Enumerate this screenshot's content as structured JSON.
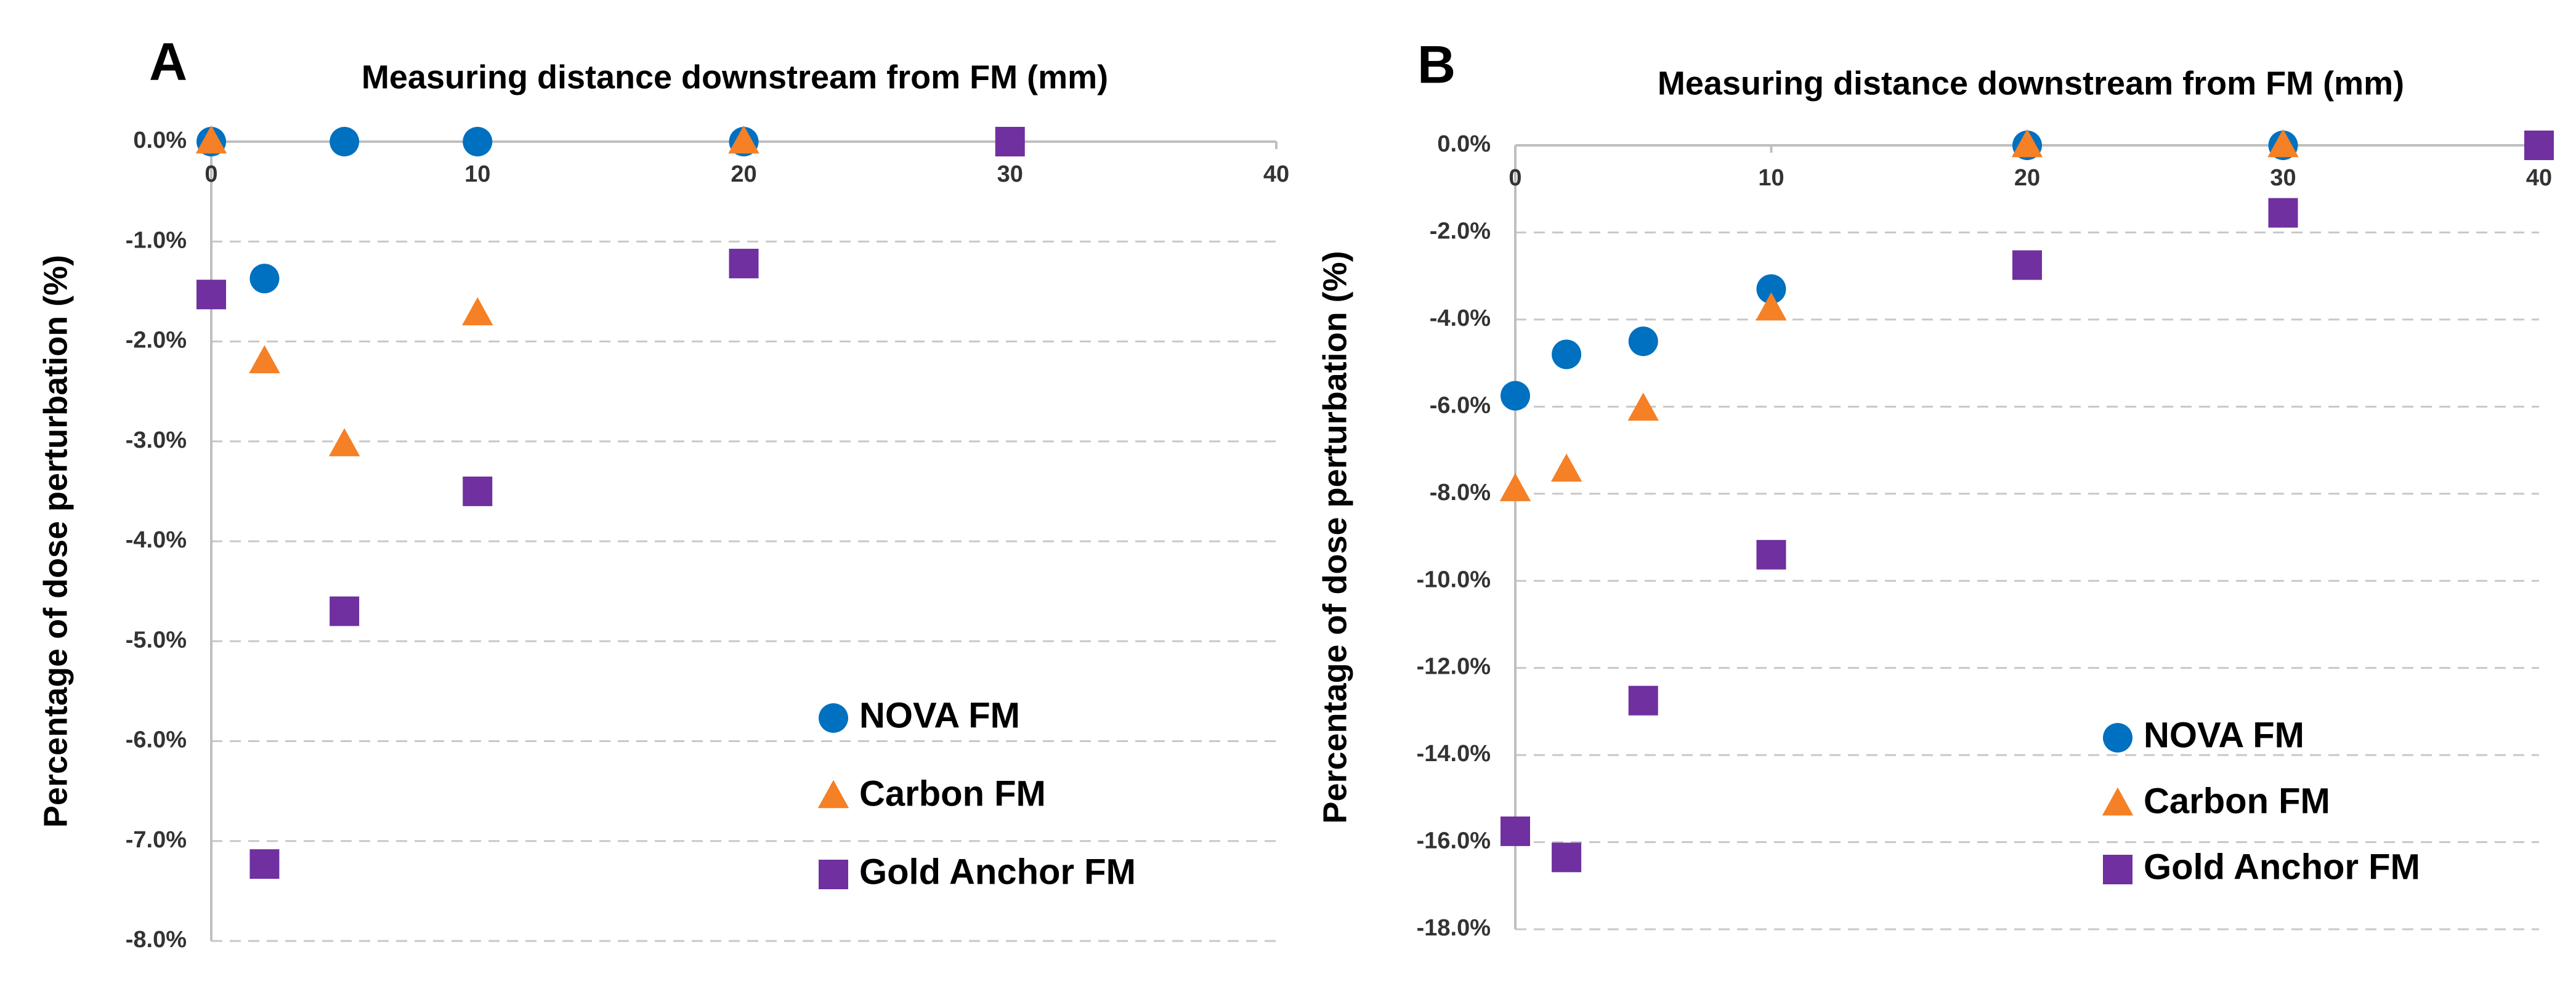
{
  "chart_data": [
    {
      "type": "scatter",
      "panel_label": "A",
      "xlabel": "Measuring distance downstream from FM (mm)",
      "ylabel": "Percentage of dose perturbation (%)",
      "xlim": [
        0,
        40
      ],
      "xticks": [
        0,
        10,
        20,
        30,
        40
      ],
      "ylim": [
        -8,
        0
      ],
      "yticks": [
        {
          "value": 0,
          "label": "0.0%"
        },
        {
          "value": -1,
          "label": "-1.0%"
        },
        {
          "value": -2,
          "label": "-2.0%"
        },
        {
          "value": -3,
          "label": "-3.0%"
        },
        {
          "value": -4,
          "label": "-4.0%"
        },
        {
          "value": -5,
          "label": "-5.0%"
        },
        {
          "value": -6,
          "label": "-6.0%"
        },
        {
          "value": -7,
          "label": "-7.0%"
        },
        {
          "value": -8,
          "label": "-8.0%"
        }
      ],
      "grid": true,
      "series": [
        {
          "name": "NOVA FM",
          "color": "#0070C0",
          "marker": "circle",
          "x": [
            0,
            2,
            5,
            10,
            20
          ],
          "values": [
            0,
            -1.37,
            0,
            0,
            0
          ]
        },
        {
          "name": "Carbon FM",
          "color": "#F58025",
          "marker": "triangle",
          "x": [
            0,
            2,
            5,
            10,
            20
          ],
          "values": [
            0,
            -2.2,
            -3.03,
            -1.72,
            0
          ]
        },
        {
          "name": "Gold Anchor FM",
          "color": "#7030A0",
          "marker": "square",
          "x": [
            0,
            2,
            5,
            10,
            20,
            30
          ],
          "values": [
            -1.53,
            -7.23,
            -4.7,
            -3.5,
            -1.22,
            0
          ]
        }
      ]
    },
    {
      "type": "scatter",
      "panel_label": "B",
      "xlabel": "Measuring distance downstream from FM (mm)",
      "ylabel": "Percentage of dose perturbation (%)",
      "xlim": [
        0,
        40
      ],
      "xticks": [
        0,
        10,
        20,
        30,
        40
      ],
      "ylim": [
        -18,
        0
      ],
      "yticks": [
        {
          "value": 0,
          "label": "0.0%"
        },
        {
          "value": -2,
          "label": "-2.0%"
        },
        {
          "value": -4,
          "label": "-4.0%"
        },
        {
          "value": -6,
          "label": "-6.0%"
        },
        {
          "value": -8,
          "label": "-8.0%"
        },
        {
          "value": -10,
          "label": "-10.0%"
        },
        {
          "value": -12,
          "label": "-12.0%"
        },
        {
          "value": -14,
          "label": "-14.0%"
        },
        {
          "value": -16,
          "label": "-16.0%"
        },
        {
          "value": -18,
          "label": "-18.0%"
        }
      ],
      "grid": true,
      "series": [
        {
          "name": "NOVA FM",
          "color": "#0070C0",
          "marker": "circle",
          "x": [
            0,
            2,
            5,
            10,
            20,
            30
          ],
          "values": [
            -5.75,
            -4.8,
            -4.5,
            -3.3,
            0,
            0
          ]
        },
        {
          "name": "Carbon FM",
          "color": "#F58025",
          "marker": "triangle",
          "x": [
            0,
            2,
            5,
            10,
            20,
            30
          ],
          "values": [
            -7.9,
            -7.45,
            -6.05,
            -3.75,
            0,
            0
          ]
        },
        {
          "name": "Gold Anchor FM",
          "color": "#7030A0",
          "marker": "square",
          "x": [
            0,
            2,
            5,
            10,
            20,
            30,
            40
          ],
          "values": [
            -15.75,
            -16.35,
            -12.75,
            -9.4,
            -2.75,
            -1.55,
            0
          ]
        }
      ]
    }
  ]
}
